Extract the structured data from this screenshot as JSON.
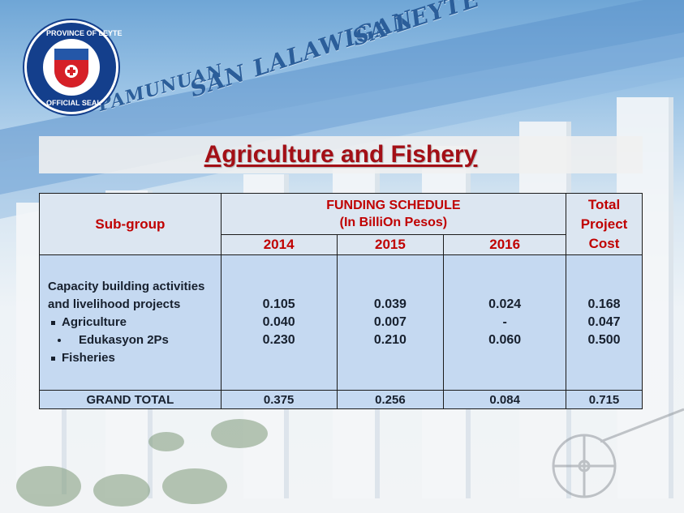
{
  "seal": {
    "top_text": "PROVINCE OF LEYTE",
    "bottom_text": "OFFICIAL SEAL"
  },
  "engravings": [
    "PAMUNUAN",
    "SAN LALAWIGAN",
    "SA LEYTE"
  ],
  "title": "Agriculture and Fishery",
  "table": {
    "sub_group_header": "Sub-group",
    "funding_header_line1": "FUNDING SCHEDULE",
    "funding_header_line2": "(In BilliOn  Pesos)",
    "total_header": [
      "Total",
      "Project",
      "Cost"
    ],
    "years": [
      "2014",
      "2015",
      "2016"
    ],
    "category_label_line1": "Capacity building activities",
    "category_label_line2": "and livelihood projects",
    "rows": [
      {
        "label": "Agriculture",
        "bullet": "square",
        "v2014": "0.105",
        "v2015": "0.039",
        "v2016": "0.024",
        "total": "0.168"
      },
      {
        "label": "Edukasyon 2Ps",
        "bullet": "dot",
        "v2014": "0.040",
        "v2015": "0.007",
        "v2016": "-",
        "total": "0.047"
      },
      {
        "label": "Fisheries",
        "bullet": "square",
        "v2014": "0.230",
        "v2015": "0.210",
        "v2016": "0.060",
        "total": "0.500"
      }
    ],
    "grand_total": {
      "label": "GRAND TOTAL",
      "v2014": "0.375",
      "v2015": "0.256",
      "v2016": "0.084",
      "total": "0.715"
    }
  },
  "colors": {
    "title_red": "#a30f16",
    "header_red": "#c00000",
    "header_bg": "#dce6f1",
    "body_bg": "#c5d9f1",
    "seal_blue": "#143f8c"
  }
}
